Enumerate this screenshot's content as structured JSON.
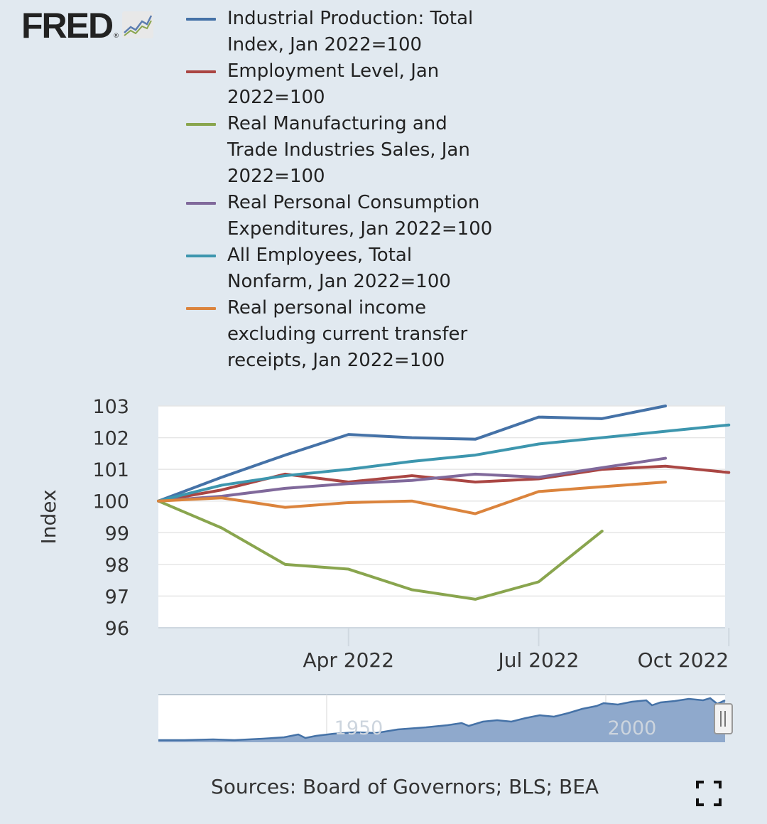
{
  "header": {
    "logo_text": "FRED",
    "logo_mark": "®",
    "logo_icon": "chart-line-icon"
  },
  "chart_data": {
    "type": "line",
    "ylabel": "Index",
    "ylim": [
      96,
      103
    ],
    "yticks": [
      "96",
      "97",
      "98",
      "99",
      "100",
      "101",
      "102",
      "103"
    ],
    "x": [
      "2022-01",
      "2022-02",
      "2022-03",
      "2022-04",
      "2022-05",
      "2022-06",
      "2022-07",
      "2022-08",
      "2022-09",
      "2022-10"
    ],
    "xticks": [
      {
        "label": "Apr 2022",
        "month": 3
      },
      {
        "label": "Jul 2022",
        "month": 6
      },
      {
        "label": "Oct 2022",
        "month": 9
      }
    ],
    "grid": true,
    "legend_position": "top",
    "series": [
      {
        "name": "Industrial Production: Total Index, Jan 2022=100",
        "color": "#4572a7",
        "values": [
          100,
          100.75,
          101.45,
          102.1,
          102.0,
          101.95,
          102.65,
          102.6,
          103.0,
          null
        ]
      },
      {
        "name": "Employment Level, Jan 2022=100",
        "color": "#aa4643",
        "values": [
          100,
          100.35,
          100.85,
          100.6,
          100.8,
          100.6,
          100.7,
          101.0,
          101.1,
          100.9
        ]
      },
      {
        "name": "Real Manufacturing and Trade Industries Sales, Jan 2022=100",
        "color": "#89a54e",
        "values": [
          100,
          99.15,
          98.0,
          97.85,
          97.2,
          96.9,
          97.45,
          99.05,
          null,
          null
        ]
      },
      {
        "name": "Real Personal Consumption Expenditures, Jan 2022=100",
        "color": "#80699b",
        "values": [
          100,
          100.15,
          100.4,
          100.55,
          100.65,
          100.85,
          100.75,
          101.05,
          101.35,
          null
        ]
      },
      {
        "name": "All Employees, Total Nonfarm, Jan 2022=100",
        "color": "#3d96ae",
        "values": [
          100,
          100.5,
          100.8,
          101.0,
          101.25,
          101.45,
          101.8,
          102.0,
          102.2,
          102.4
        ]
      },
      {
        "name": "Real personal income excluding current transfer receipts, Jan 2022=100",
        "color": "#db843d",
        "values": [
          100,
          100.1,
          99.8,
          99.95,
          100.0,
          99.6,
          100.3,
          100.45,
          100.6,
          null
        ]
      }
    ],
    "navigator": {
      "labels": [
        "1950",
        "2000"
      ],
      "color": "#4572a7"
    }
  },
  "footer": {
    "sources": "Sources: Board of Governors; BLS; BEA",
    "fullscreen_icon": "fullscreen-icon"
  }
}
